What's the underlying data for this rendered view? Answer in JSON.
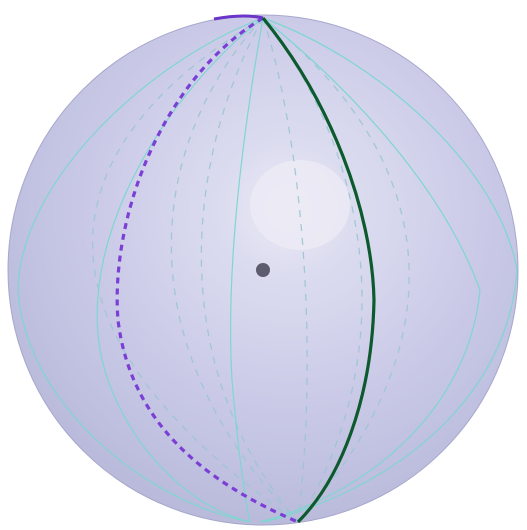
{
  "figure": {
    "kind": "3d-sphere-meridians",
    "colors": {
      "background": "#ffffff",
      "sphere_base": "#c8c8e8",
      "sphere_light": "#e6e6f4",
      "sphere_shadow": "#a9a9cf",
      "meridian": "#7fd6d0",
      "meridian_hidden": "#9cc6d2",
      "highlight_front": "#0c5a2e",
      "highlight_back": "#7b3fd6",
      "center_point": "#5c5c6e"
    }
  }
}
